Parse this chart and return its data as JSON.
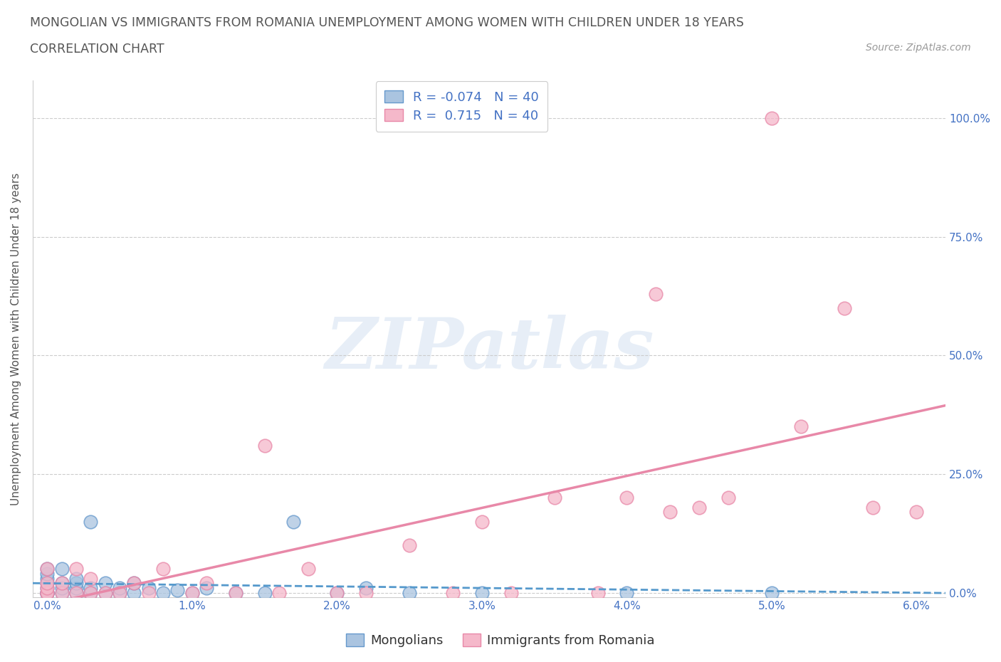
{
  "title_line1": "MONGOLIAN VS IMMIGRANTS FROM ROMANIA UNEMPLOYMENT AMONG WOMEN WITH CHILDREN UNDER 18 YEARS",
  "title_line2": "CORRELATION CHART",
  "source": "Source: ZipAtlas.com",
  "ylabel": "Unemployment Among Women with Children Under 18 years",
  "xlim": [
    -0.001,
    0.062
  ],
  "ylim": [
    -0.01,
    1.08
  ],
  "xtick_labels": [
    "0.0%",
    "1.0%",
    "2.0%",
    "3.0%",
    "4.0%",
    "5.0%",
    "6.0%"
  ],
  "xtick_values": [
    0.0,
    0.01,
    0.02,
    0.03,
    0.04,
    0.05,
    0.06
  ],
  "ytick_labels": [
    "0.0%",
    "25.0%",
    "50.0%",
    "75.0%",
    "100.0%"
  ],
  "ytick_values": [
    0.0,
    0.25,
    0.5,
    0.75,
    1.0
  ],
  "mongolians_color": "#aac4e0",
  "mongolians_edge_color": "#6699cc",
  "romania_color": "#f5b8ca",
  "romania_edge_color": "#e888a8",
  "mongolians_line_color": "#5599cc",
  "romania_line_color": "#e888a8",
  "R_mongolians": -0.074,
  "R_romania": 0.715,
  "N_mongolians": 40,
  "N_romania": 40,
  "legend_mongolians": "Mongolians",
  "legend_romania": "Immigrants from Romania",
  "watermark": "ZIPatlas",
  "title_color": "#555555",
  "axis_color": "#4472c4",
  "mongolians_x": [
    0.0,
    0.0,
    0.0,
    0.0,
    0.0,
    0.0,
    0.0,
    0.0,
    0.0,
    0.001,
    0.001,
    0.001,
    0.001,
    0.002,
    0.002,
    0.002,
    0.002,
    0.003,
    0.003,
    0.003,
    0.004,
    0.004,
    0.005,
    0.005,
    0.006,
    0.006,
    0.007,
    0.008,
    0.009,
    0.01,
    0.011,
    0.013,
    0.015,
    0.017,
    0.02,
    0.022,
    0.025,
    0.03,
    0.04,
    0.05
  ],
  "mongolians_y": [
    0.0,
    0.0,
    0.0,
    0.0,
    0.01,
    0.02,
    0.03,
    0.04,
    0.05,
    0.0,
    0.01,
    0.02,
    0.05,
    0.0,
    0.01,
    0.02,
    0.03,
    0.0,
    0.01,
    0.15,
    0.0,
    0.02,
    0.0,
    0.01,
    0.0,
    0.02,
    0.01,
    0.0,
    0.005,
    0.0,
    0.01,
    0.0,
    0.0,
    0.15,
    0.0,
    0.01,
    0.0,
    0.0,
    0.0,
    0.0
  ],
  "romania_x": [
    0.0,
    0.0,
    0.0,
    0.0,
    0.0,
    0.001,
    0.001,
    0.002,
    0.002,
    0.003,
    0.003,
    0.004,
    0.005,
    0.006,
    0.007,
    0.008,
    0.01,
    0.011,
    0.013,
    0.015,
    0.016,
    0.018,
    0.02,
    0.022,
    0.025,
    0.028,
    0.03,
    0.032,
    0.035,
    0.038,
    0.04,
    0.042,
    0.043,
    0.045,
    0.047,
    0.05,
    0.052,
    0.055,
    0.057,
    0.06
  ],
  "romania_y": [
    0.0,
    0.0,
    0.01,
    0.02,
    0.05,
    0.0,
    0.02,
    0.0,
    0.05,
    0.0,
    0.03,
    0.0,
    0.0,
    0.02,
    0.0,
    0.05,
    0.0,
    0.02,
    0.0,
    0.31,
    0.0,
    0.05,
    0.0,
    0.0,
    0.1,
    0.0,
    0.15,
    0.0,
    0.2,
    0.0,
    0.2,
    0.63,
    0.17,
    0.18,
    0.2,
    1.0,
    0.35,
    0.6,
    0.18,
    0.17
  ]
}
